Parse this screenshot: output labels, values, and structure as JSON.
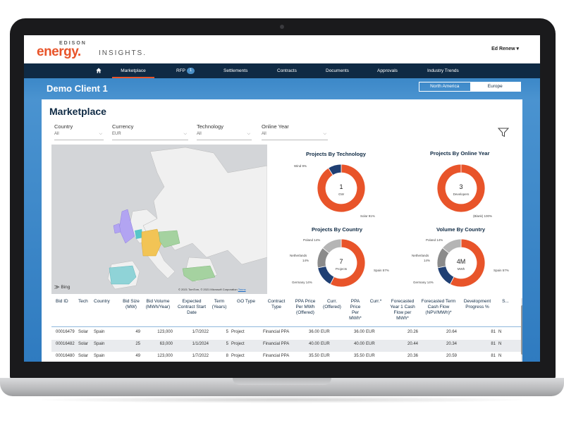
{
  "brand": {
    "edison": "EDISON",
    "energy": "energy.",
    "insights": "INSIGHTS."
  },
  "user": {
    "name": "Ed Renew ▾"
  },
  "nav": {
    "items": [
      "Marketplace",
      "RFP",
      "Settlements",
      "Contracts",
      "Documents",
      "Approvals",
      "Industry Trends"
    ],
    "rfp_badge": "1"
  },
  "client": {
    "title": "Demo Client 1"
  },
  "regions": {
    "options": [
      "North America",
      "Europe"
    ],
    "selected": "Europe"
  },
  "page": {
    "title": "Marketplace"
  },
  "filters": [
    {
      "label": "Country",
      "value": "All"
    },
    {
      "label": "Currency",
      "value": "EUR"
    },
    {
      "label": "Technology",
      "value": "All"
    },
    {
      "label": "Online Year",
      "value": "All"
    }
  ],
  "map": {
    "brand": "Bing",
    "copyright": "© 2021 TomTom, © 2021 Microsoft Corporation",
    "terms": "Terms"
  },
  "charts": {
    "technology": {
      "title": "Projects By Technology",
      "center_value": "1",
      "center_unit": "GW",
      "labels": [
        "Wind 9%",
        "Solar 91%"
      ]
    },
    "online_year": {
      "title": "Projects By Online Year",
      "center_value": "3",
      "center_unit": "Developers",
      "labels": [
        "(Blank) 100%"
      ]
    },
    "country": {
      "title": "Projects By Country",
      "center_value": "7",
      "center_unit": "Projects",
      "labels": [
        "Poland 14%",
        "Netherlands",
        "14%",
        "Spain 57%",
        "Germany 14%"
      ]
    },
    "volume": {
      "title": "Volume By Country",
      "center_value": "4M",
      "center_unit": "MWh",
      "labels": [
        "Poland 14%",
        "Netherlands",
        "14%",
        "Spain 57%",
        "Germany 14%"
      ]
    }
  },
  "chart_data": [
    {
      "type": "pie",
      "title": "Projects By Technology",
      "categories": [
        "Solar",
        "Wind"
      ],
      "values": [
        91,
        9
      ]
    },
    {
      "type": "pie",
      "title": "Projects By Online Year",
      "categories": [
        "(Blank)"
      ],
      "values": [
        100
      ]
    },
    {
      "type": "pie",
      "title": "Projects By Country",
      "categories": [
        "Spain",
        "Germany",
        "Netherlands",
        "Poland"
      ],
      "values": [
        57,
        14,
        14,
        14
      ]
    },
    {
      "type": "pie",
      "title": "Volume By Country",
      "categories": [
        "Spain",
        "Germany",
        "Netherlands",
        "Poland"
      ],
      "values": [
        57,
        14,
        14,
        14
      ]
    }
  ],
  "colors": {
    "orange": "#e8542a",
    "navy": "#1f3f73",
    "gray": "#8b8b8b",
    "lightgray": "#b5b5b5"
  },
  "table": {
    "headers": [
      "Bid ID",
      "Tech",
      "Country",
      "Bid Size (MW)",
      "Bid Volume (MWh/Year)",
      "Expected Contract Start Date",
      "Term (Years)",
      "GO Type",
      "Contract Type",
      "PPA Price Per MWh (Offered)",
      "Curr. (Offered)",
      "PPA Price Per MWh*",
      "Curr.*",
      "Forecasted Year 1 Cash Flow per MWh*",
      "Forecasted Term Cash Flow (NPV/MWh)*",
      "Development Progress %",
      "S..."
    ],
    "rows": [
      [
        "00016479",
        "Solar",
        "Spain",
        "49",
        "123,000",
        "1/7/2022",
        "5",
        "Project",
        "Financial PPA",
        "36.00",
        "EUR",
        "36.00",
        "EUR",
        "20.26",
        "20.64",
        "81",
        "N"
      ],
      [
        "00016482",
        "Solar",
        "Spain",
        "25",
        "63,000",
        "1/1/2024",
        "5",
        "Project",
        "Financial PPA",
        "40.00",
        "EUR",
        "40.00",
        "EUR",
        "20.44",
        "20.34",
        "81",
        "N"
      ],
      [
        "00016480",
        "Solar",
        "Spain",
        "49",
        "123,000",
        "1/7/2022",
        "8",
        "Project",
        "Financial PPA",
        "35.50",
        "EUR",
        "35.50",
        "EUR",
        "20.36",
        "20.59",
        "81",
        "N"
      ]
    ]
  }
}
